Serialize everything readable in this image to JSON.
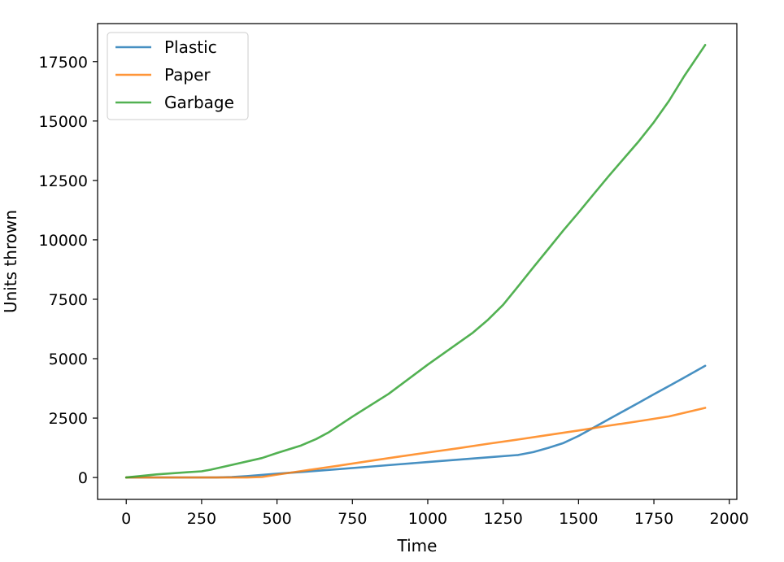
{
  "chart_data": {
    "type": "line",
    "title": "",
    "xlabel": "Time",
    "ylabel": "Units thrown",
    "xlim": [
      -95,
      2025
    ],
    "ylim": [
      -920,
      19100
    ],
    "xticks": [
      0,
      250,
      500,
      750,
      1000,
      1250,
      1500,
      1750,
      2000
    ],
    "yticks": [
      0,
      2500,
      5000,
      7500,
      10000,
      12500,
      15000,
      17500
    ],
    "xtick_labels": [
      "0",
      "250",
      "500",
      "750",
      "1000",
      "1250",
      "1500",
      "1750",
      "2000"
    ],
    "ytick_labels": [
      "0",
      "2500",
      "5000",
      "7500",
      "10000",
      "12500",
      "15000",
      "17500"
    ],
    "grid": false,
    "legend_position": "top-left",
    "series": [
      {
        "name": "Plastic",
        "color": "#1f77b4",
        "x": [
          0,
          100,
          200,
          300,
          350,
          400,
          500,
          600,
          700,
          800,
          900,
          1000,
          1100,
          1200,
          1300,
          1350,
          1400,
          1450,
          1500,
          1550,
          1600,
          1650,
          1700,
          1750,
          1800,
          1850,
          1920
        ],
        "y": [
          0,
          0,
          0,
          0,
          20,
          60,
          160,
          250,
          350,
          450,
          550,
          650,
          750,
          850,
          950,
          1070,
          1250,
          1450,
          1750,
          2100,
          2450,
          2800,
          3150,
          3500,
          3850,
          4200,
          4700
        ]
      },
      {
        "name": "Paper",
        "color": "#ff7f0e",
        "x": [
          0,
          100,
          200,
          300,
          400,
          450,
          500,
          600,
          700,
          800,
          900,
          1000,
          1100,
          1200,
          1300,
          1400,
          1500,
          1600,
          1700,
          1800,
          1920
        ],
        "y": [
          0,
          0,
          0,
          0,
          0,
          20,
          120,
          310,
          490,
          680,
          870,
          1050,
          1230,
          1420,
          1600,
          1790,
          1980,
          2180,
          2370,
          2570,
          2930
        ]
      },
      {
        "name": "Garbage",
        "color": "#2ca02c",
        "x": [
          0,
          100,
          200,
          250,
          280,
          350,
          450,
          500,
          580,
          630,
          670,
          750,
          870,
          1000,
          1150,
          1200,
          1250,
          1300,
          1350,
          1400,
          1450,
          1500,
          1550,
          1600,
          1650,
          1700,
          1750,
          1800,
          1850,
          1920
        ],
        "y": [
          0,
          130,
          220,
          260,
          330,
          530,
          820,
          1030,
          1350,
          1620,
          1890,
          2560,
          3520,
          4750,
          6100,
          6640,
          7270,
          8050,
          8840,
          9620,
          10400,
          11150,
          11920,
          12680,
          13420,
          14150,
          14950,
          15850,
          16880,
          18200
        ]
      }
    ]
  }
}
